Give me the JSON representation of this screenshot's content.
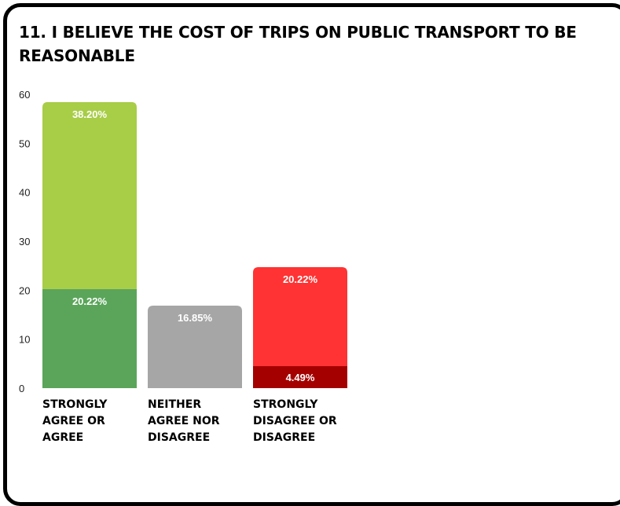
{
  "title": "11. I BELIEVE THE COST OF TRIPS ON PUBLIC TRANSPORT TO BE REASONABLE",
  "chart_data": {
    "type": "bar",
    "stacked": true,
    "title": "11. I BELIEVE THE COST OF TRIPS ON PUBLIC TRANSPORT TO BE REASONABLE",
    "categories": [
      "STRONGLY AGREE OR AGREE",
      "NEITHER AGREE NOR DISAGREE",
      "STRONGLY DISAGREE OR DISAGREE"
    ],
    "ylim": [
      0,
      60
    ],
    "yticks": [
      "0",
      "10",
      "20",
      "30",
      "40",
      "50",
      "60"
    ],
    "grid": false,
    "segments": [
      [
        {
          "value": 20.22,
          "label": "20.22%",
          "color": "#5aa55a"
        },
        {
          "value": 38.2,
          "label": "38.20%",
          "color": "#a8cd47"
        }
      ],
      [
        {
          "value": 16.85,
          "label": "16.85%",
          "color": "#a6a6a6"
        }
      ],
      [
        {
          "value": 4.49,
          "label": "4.49%",
          "color": "#a50000"
        },
        {
          "value": 20.22,
          "label": "20.22%",
          "color": "#ff3333"
        }
      ]
    ]
  }
}
